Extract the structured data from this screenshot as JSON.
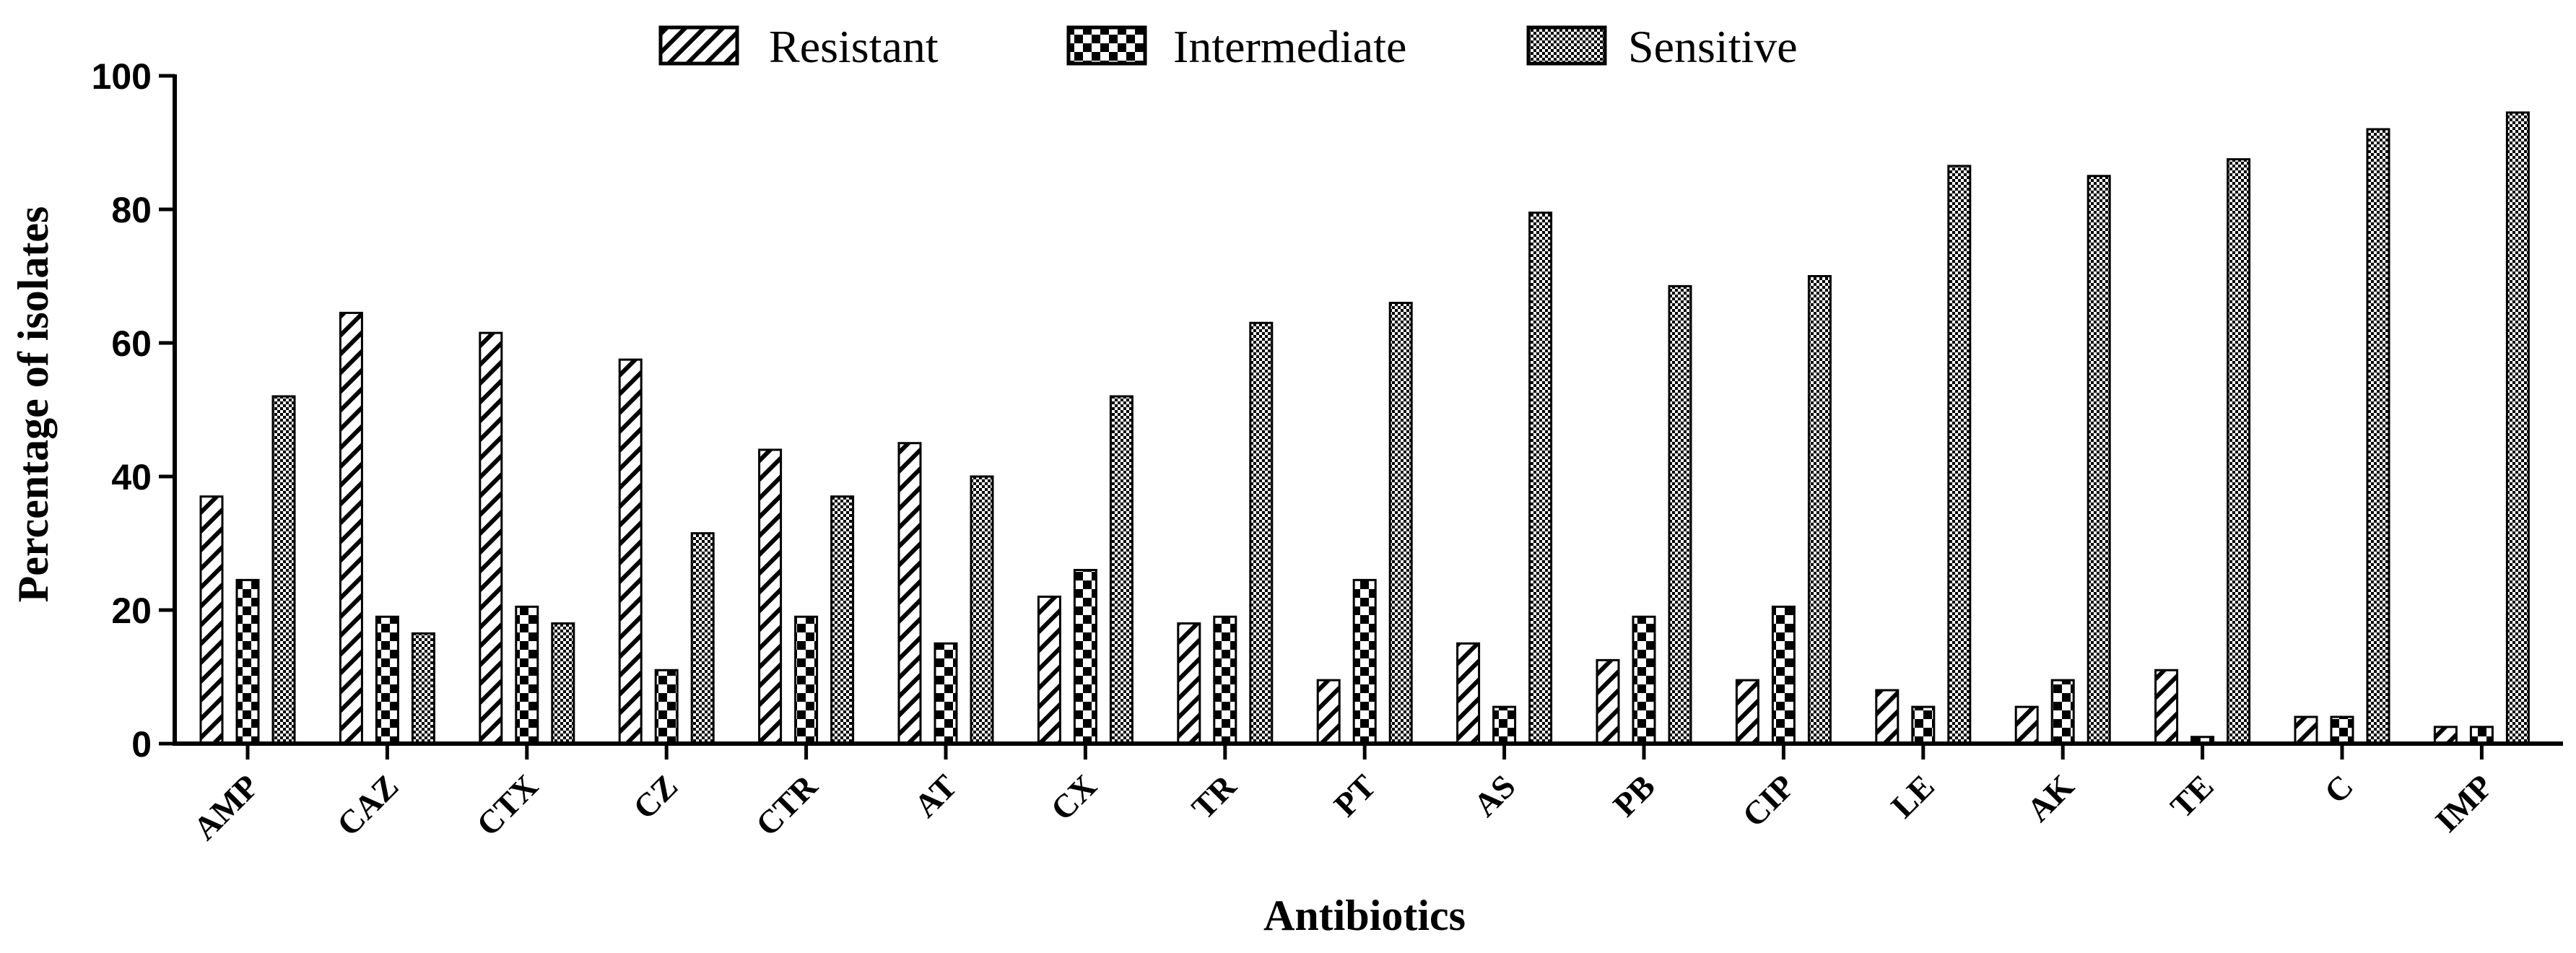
{
  "chart_data": {
    "type": "bar",
    "title": "",
    "xlabel": "Antibiotics",
    "ylabel": "Percentage of isolates",
    "ylim": [
      0,
      100
    ],
    "yticks": [
      "0",
      "20",
      "40",
      "60",
      "80",
      "100"
    ],
    "grid": false,
    "legend_position": "top-center",
    "categories": [
      "AMP",
      "CAZ",
      "CTX",
      "CZ",
      "CTR",
      "AT",
      "CX",
      "TR",
      "PT",
      "AS",
      "PB",
      "CIP",
      "LE",
      "AK",
      "TE",
      "C",
      "IMP"
    ],
    "series": [
      {
        "name": "Resistant",
        "pattern": "diagonal-hatch",
        "values": [
          37,
          64.5,
          61.5,
          57.5,
          44,
          45,
          22,
          18,
          9.5,
          15,
          12.5,
          9.5,
          8,
          5.5,
          11,
          4,
          2.5
        ]
      },
      {
        "name": "Intermediate",
        "pattern": "checkerboard",
        "values": [
          24.5,
          19,
          20.5,
          11,
          19,
          15,
          26,
          19,
          24.5,
          5.5,
          19,
          20.5,
          5.5,
          9.5,
          1,
          4,
          2.5
        ]
      },
      {
        "name": "Sensitive",
        "pattern": "fine-checker",
        "values": [
          52,
          16.5,
          18,
          31.5,
          37,
          40,
          52,
          63,
          66,
          79.5,
          68.5,
          70,
          86.5,
          85,
          87.5,
          92,
          94.5
        ]
      }
    ],
    "colors": {
      "ink": "#000000",
      "fill": "#ffffff"
    }
  }
}
